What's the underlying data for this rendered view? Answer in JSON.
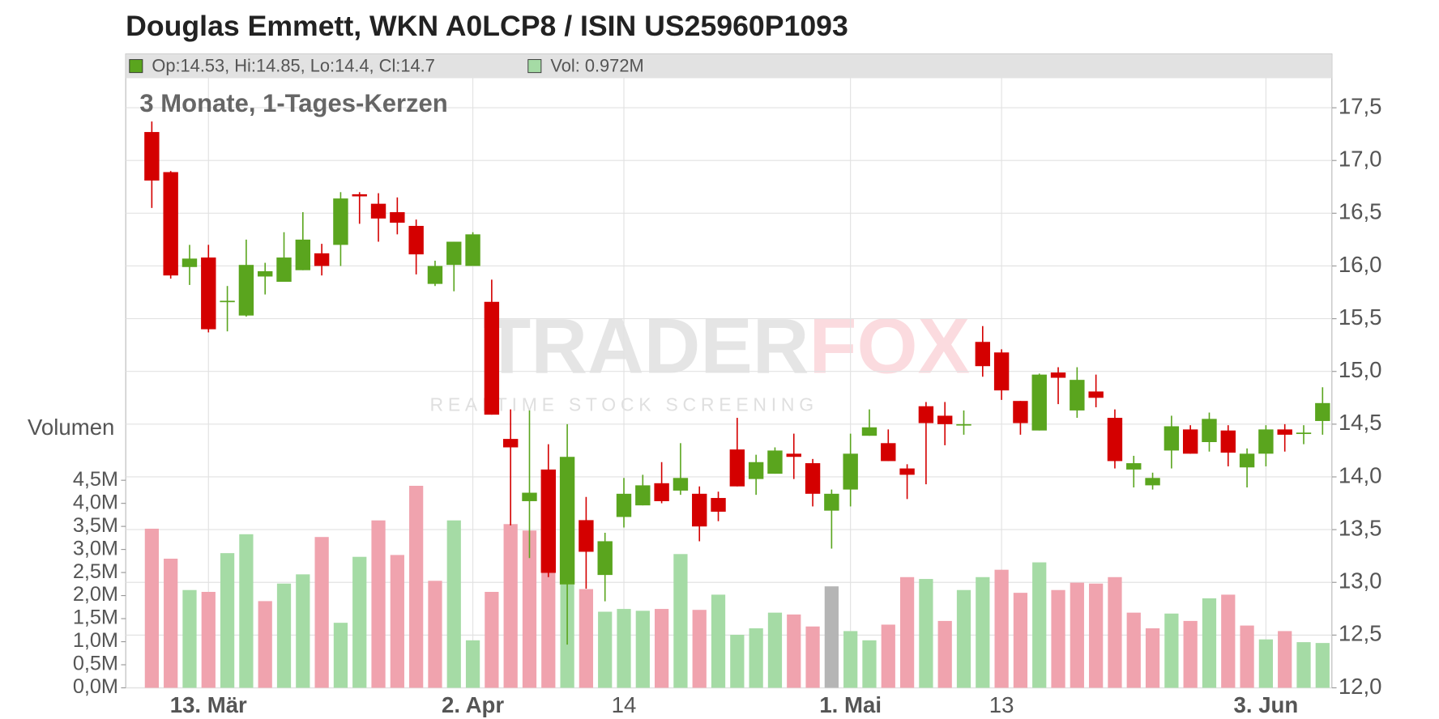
{
  "chart_data": {
    "type": "candlestick",
    "title": "Douglas Emmett, WKN A0LCP8 / ISIN US25960P1093",
    "subtitle": "3 Monate, 1-Tages-Kerzen",
    "legend_ohlc": "Op:14.53, Hi:14.85, Lo:14.4, Cl:14.7",
    "legend_volume": "Vol: 0.972M",
    "volume_axis_label": "Volumen",
    "watermark_parts": [
      "TRADER",
      "FOX"
    ],
    "watermark_tagline": "REALTIME STOCK SCREENING",
    "categories": [
      null,
      null,
      null,
      "13. Mär",
      null,
      null,
      null,
      null,
      null,
      null,
      null,
      null,
      null,
      null,
      null,
      null,
      null,
      "2. Apr",
      null,
      null,
      null,
      null,
      null,
      null,
      null,
      "14",
      null,
      null,
      null,
      null,
      null,
      null,
      null,
      null,
      null,
      null,
      null,
      "1. Mai",
      null,
      null,
      null,
      null,
      null,
      null,
      null,
      "13",
      null,
      null,
      null,
      null,
      null,
      null,
      null,
      null,
      null,
      null,
      null,
      null,
      null,
      "3. Jun",
      null,
      null,
      null
    ],
    "category_bold": [
      false,
      false,
      false,
      true,
      false,
      false,
      false,
      false,
      false,
      false,
      false,
      false,
      false,
      false,
      false,
      false,
      false,
      true,
      false,
      false,
      false,
      false,
      false,
      false,
      false,
      false,
      false,
      false,
      false,
      false,
      false,
      false,
      false,
      false,
      false,
      false,
      false,
      true,
      false,
      false,
      false,
      false,
      false,
      false,
      false,
      false,
      false,
      false,
      false,
      false,
      false,
      false,
      false,
      false,
      false,
      false,
      false,
      false,
      false,
      true,
      false,
      false,
      false
    ],
    "open": [
      17.27,
      16.89,
      15.99,
      16.08,
      15.66,
      15.53,
      15.9,
      15.85,
      15.96,
      16.12,
      16.2,
      16.68,
      16.59,
      16.51,
      16.38,
      15.83,
      16.01,
      16.0,
      15.66,
      14.36,
      13.77,
      14.07,
      12.98,
      13.59,
      13.07,
      13.62,
      13.73,
      13.94,
      13.87,
      13.84,
      13.8,
      14.26,
      13.98,
      14.03,
      14.22,
      14.13,
      13.68,
      13.88,
      14.39,
      14.32,
      14.08,
      14.67,
      14.58,
      14.49,
      15.28,
      15.18,
      14.72,
      14.44,
      14.99,
      14.63,
      14.81,
      14.56,
      14.07,
      13.92,
      14.25,
      14.45,
      14.33,
      14.44,
      14.09,
      14.22,
      14.45,
      14.41,
      14.53
    ],
    "high": [
      17.37,
      16.9,
      16.2,
      16.2,
      15.81,
      16.25,
      16.03,
      16.32,
      16.51,
      16.21,
      16.7,
      16.7,
      16.69,
      16.65,
      16.44,
      16.05,
      16.23,
      16.32,
      15.87,
      14.64,
      14.63,
      14.31,
      14.5,
      13.81,
      13.47,
      13.99,
      14.02,
      14.14,
      14.32,
      13.91,
      13.86,
      14.56,
      14.21,
      14.28,
      14.41,
      14.17,
      13.88,
      14.41,
      14.64,
      14.45,
      14.12,
      14.71,
      14.71,
      14.63,
      15.43,
      15.21,
      14.72,
      14.98,
      15.04,
      15.04,
      14.97,
      14.64,
      14.2,
      14.04,
      14.58,
      14.49,
      14.61,
      14.49,
      14.27,
      14.49,
      14.5,
      14.49,
      14.85
    ],
    "low": [
      16.55,
      15.88,
      15.82,
      15.37,
      15.38,
      15.52,
      15.73,
      15.85,
      15.96,
      15.91,
      16.0,
      16.4,
      16.23,
      16.3,
      15.92,
      15.81,
      15.76,
      16.0,
      14.59,
      13.54,
      13.23,
      13.05,
      12.41,
      12.94,
      12.82,
      13.52,
      13.73,
      13.75,
      13.83,
      13.39,
      13.58,
      13.91,
      13.83,
      14.03,
      13.98,
      13.72,
      13.32,
      13.72,
      14.39,
      14.15,
      13.79,
      13.93,
      14.3,
      14.4,
      14.95,
      14.73,
      14.4,
      14.44,
      14.69,
      14.56,
      14.66,
      14.08,
      13.9,
      13.88,
      14.08,
      14.22,
      14.24,
      14.1,
      13.9,
      14.1,
      14.24,
      14.31,
      14.4
    ],
    "close": [
      16.81,
      15.91,
      16.07,
      15.4,
      15.67,
      16.01,
      15.95,
      16.08,
      16.25,
      16.0,
      16.64,
      16.66,
      16.45,
      16.41,
      16.11,
      16.0,
      16.23,
      16.3,
      14.59,
      14.28,
      13.85,
      13.09,
      14.19,
      13.29,
      13.39,
      13.84,
      13.92,
      13.77,
      13.99,
      13.53,
      13.67,
      13.91,
      14.14,
      14.25,
      14.19,
      13.84,
      13.84,
      14.22,
      14.47,
      14.15,
      14.02,
      14.51,
      14.5,
      14.5,
      15.05,
      14.82,
      14.51,
      14.97,
      14.94,
      14.92,
      14.75,
      14.15,
      14.13,
      13.99,
      14.48,
      14.22,
      14.55,
      14.23,
      14.22,
      14.45,
      14.4,
      14.42,
      14.7
    ],
    "volume": [
      3.45,
      2.8,
      2.12,
      2.08,
      2.92,
      3.33,
      1.88,
      2.26,
      2.46,
      3.27,
      1.41,
      2.84,
      3.63,
      2.88,
      4.38,
      2.32,
      3.63,
      1.03,
      2.08,
      3.55,
      3.41,
      3.0,
      2.24,
      2.14,
      1.65,
      1.71,
      1.67,
      1.71,
      2.9,
      1.69,
      2.02,
      1.15,
      1.29,
      1.63,
      1.59,
      1.33,
      2.2,
      1.23,
      1.03,
      1.37,
      2.4,
      2.36,
      1.45,
      2.12,
      2.4,
      2.56,
      2.06,
      2.72,
      2.12,
      2.28,
      2.26,
      2.4,
      1.63,
      1.29,
      1.61,
      1.45,
      1.94,
      2.02,
      1.35,
      1.05,
      1.23,
      0.99,
      0.972
    ],
    "volume_colors": [
      "#f0a3ae",
      "#f0a3ae",
      "#a5dba5",
      "#f0a3ae",
      "#a5dba5",
      "#a5dba5",
      "#f0a3ae",
      "#a5dba5",
      "#a5dba5",
      "#f0a3ae",
      "#a5dba5",
      "#a5dba5",
      "#f0a3ae",
      "#f0a3ae",
      "#f0a3ae",
      "#f0a3ae",
      "#a5dba5",
      "#a5dba5",
      "#f0a3ae",
      "#f0a3ae",
      "#f0a3ae",
      "#f0a3ae",
      "#a5dba5",
      "#f0a3ae",
      "#a5dba5",
      "#a5dba5",
      "#a5dba5",
      "#f0a3ae",
      "#a5dba5",
      "#f0a3ae",
      "#a5dba5",
      "#a5dba5",
      "#a5dba5",
      "#a5dba5",
      "#f0a3ae",
      "#f0a3ae",
      "#b5b5b5",
      "#a5dba5",
      "#a5dba5",
      "#f0a3ae",
      "#f0a3ae",
      "#a5dba5",
      "#f0a3ae",
      "#a5dba5",
      "#a5dba5",
      "#f0a3ae",
      "#f0a3ae",
      "#a5dba5",
      "#f0a3ae",
      "#f0a3ae",
      "#f0a3ae",
      "#f0a3ae",
      "#f0a3ae",
      "#f0a3ae",
      "#a5dba5",
      "#f0a3ae",
      "#a5dba5",
      "#f0a3ae",
      "#f0a3ae",
      "#a5dba5",
      "#f0a3ae",
      "#a5dba5",
      "#a5dba5"
    ],
    "up_color": "#5aa51e",
    "down_color": "#d40000",
    "ylim": [
      12,
      18.01
    ],
    "yticks": [
      {
        "value": 12,
        "label": "12,0"
      },
      {
        "value": 12.5,
        "label": "12,5"
      },
      {
        "value": 13,
        "label": "13,0"
      },
      {
        "value": 13.5,
        "label": "13,5"
      },
      {
        "value": 14,
        "label": "14,0"
      },
      {
        "value": 14.5,
        "label": "14,5"
      },
      {
        "value": 15,
        "label": "15,0"
      },
      {
        "value": 15.5,
        "label": "15,5"
      },
      {
        "value": 16,
        "label": "16,0"
      },
      {
        "value": 16.5,
        "label": "16,5"
      },
      {
        "value": 17,
        "label": "17,0"
      },
      {
        "value": 17.5,
        "label": "17,5"
      }
    ],
    "volume_ylim": [
      0,
      4.5
    ],
    "volume_ticks": [
      {
        "value": 0,
        "label": "0,0M"
      },
      {
        "value": 0.5,
        "label": "0,5M"
      },
      {
        "value": 1,
        "label": "1,0M"
      },
      {
        "value": 1.5,
        "label": "1,5M"
      },
      {
        "value": 2,
        "label": "2,0M"
      },
      {
        "value": 2.5,
        "label": "2,5M"
      },
      {
        "value": 3,
        "label": "3,0M"
      },
      {
        "value": 3.5,
        "label": "3,5M"
      },
      {
        "value": 4,
        "label": "4,0M"
      },
      {
        "value": 4.5,
        "label": "4,5M"
      }
    ],
    "grid": true
  }
}
